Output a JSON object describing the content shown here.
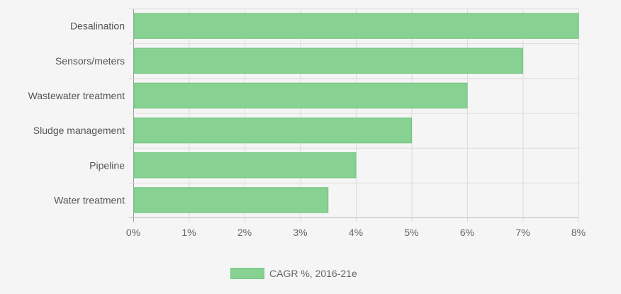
{
  "chart_data": {
    "type": "bar",
    "orientation": "horizontal",
    "categories": [
      "Desalination",
      "Sensors/meters",
      "Wastewater treatment",
      "Sludge management",
      "Pipeline",
      "Water treatment"
    ],
    "series": [
      {
        "name": "CAGR %, 2016-21e",
        "values": [
          8,
          7,
          6,
          5,
          4,
          3.5
        ]
      }
    ],
    "xlim": [
      0,
      8
    ],
    "x_ticks": [
      "0%",
      "1%",
      "2%",
      "3%",
      "4%",
      "5%",
      "6%",
      "7%",
      "8%"
    ],
    "grid": true,
    "legend_position": "bottom",
    "bar_color": "#87d192",
    "bar_border_color": "#6fc47f",
    "title": "",
    "xlabel": "",
    "ylabel": ""
  }
}
